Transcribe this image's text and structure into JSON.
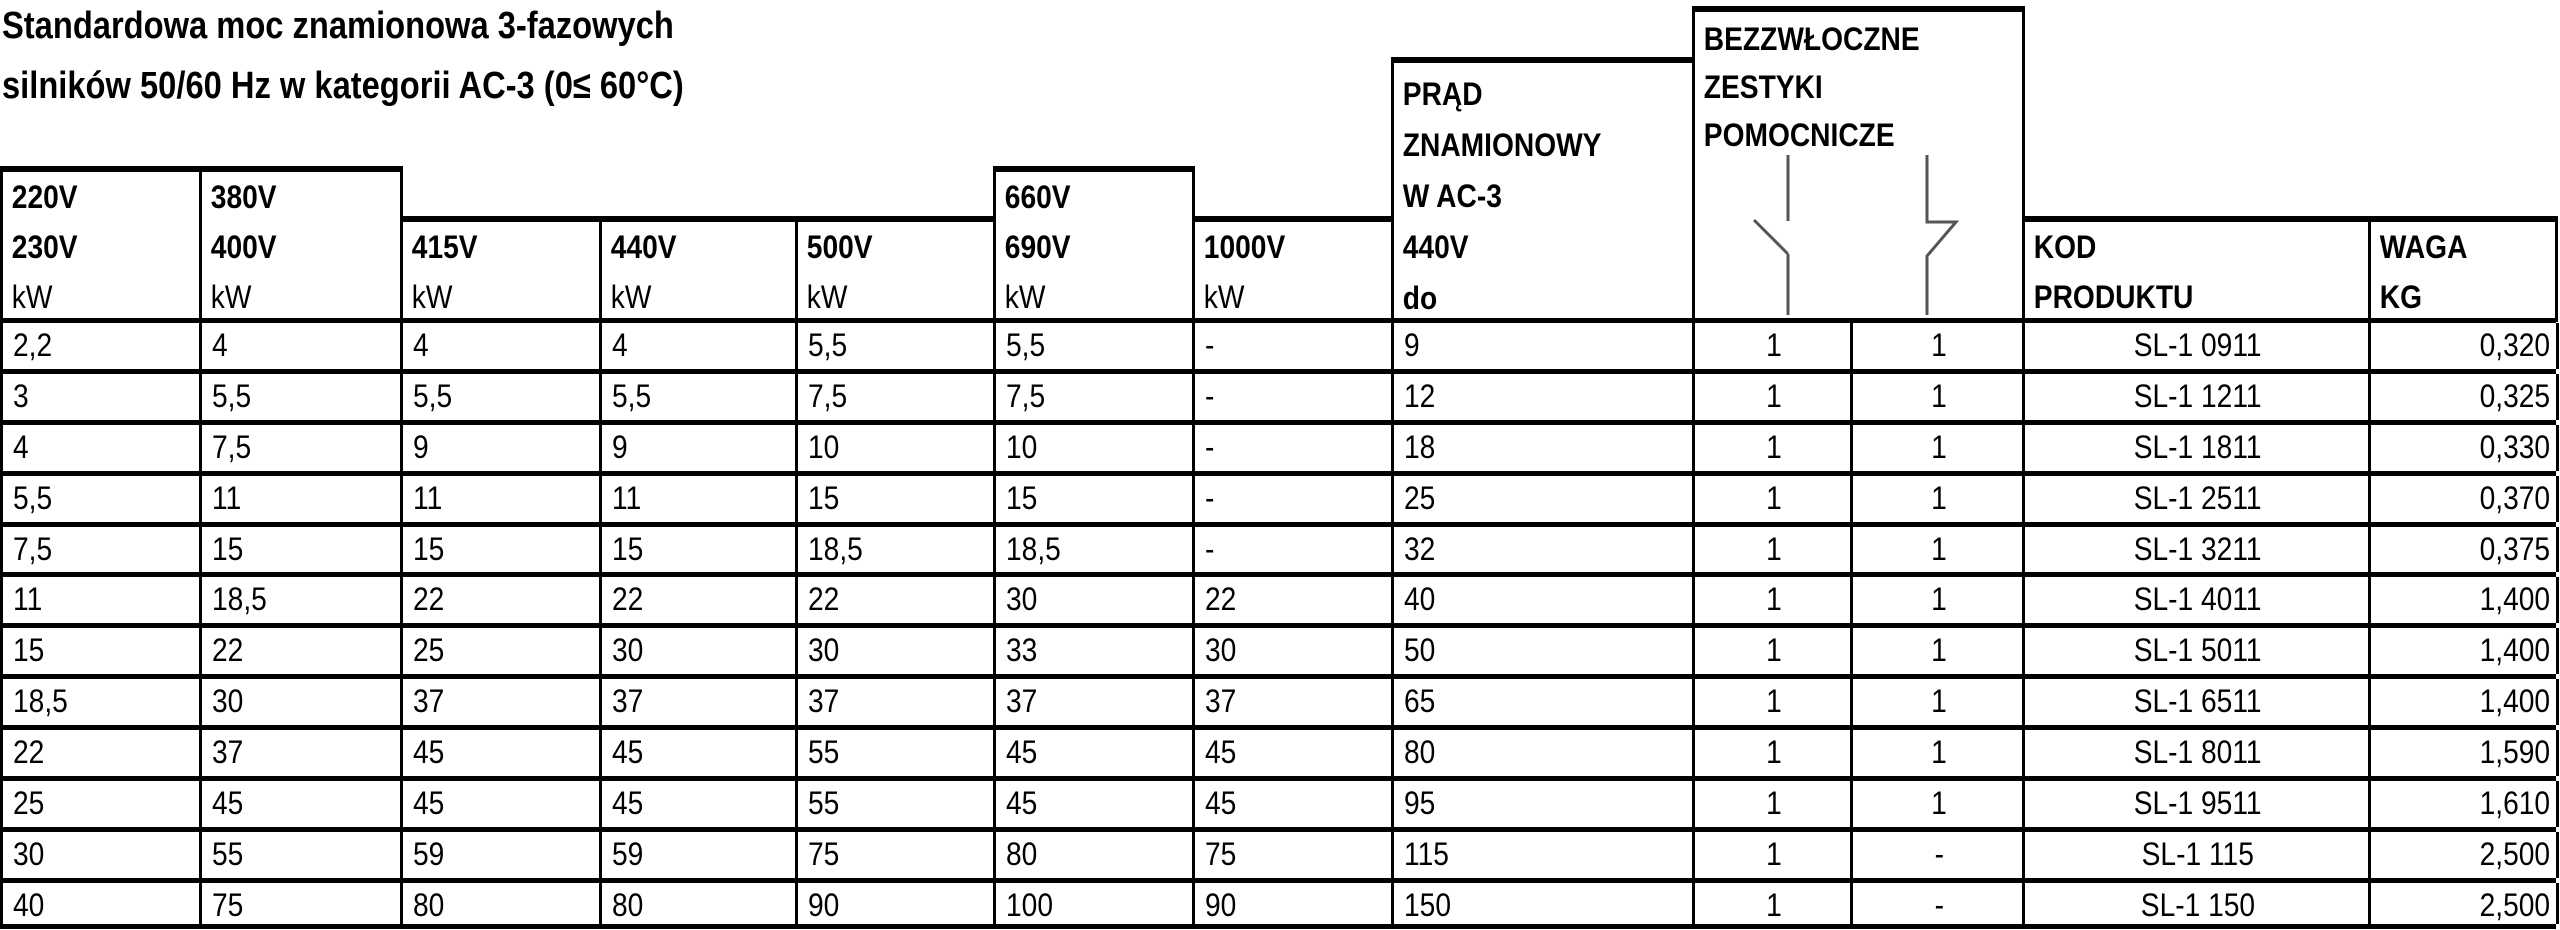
{
  "title": {
    "line1": "Standardowa moc znamionowa 3-fazowych",
    "line2": "silników 50/60 Hz w kategorii AC-3 (0≤ 60°C)"
  },
  "headers": {
    "v220": [
      "220V",
      "230V",
      "kW"
    ],
    "v380": [
      "380V",
      "400V",
      "kW"
    ],
    "v415": [
      "415V",
      "kW"
    ],
    "v440": [
      "440V",
      "kW"
    ],
    "v500": [
      "500V",
      "kW"
    ],
    "v660": [
      "660V",
      "690V",
      "kW"
    ],
    "v1000": [
      "1000V",
      "kW"
    ],
    "current": [
      "PRĄD",
      "ZNAMIONOWY",
      "W AC-3",
      "440V",
      "do"
    ],
    "contacts": [
      "BEZZWŁOCZNE",
      "ZESTYKI",
      "POMOCNICZE"
    ],
    "contact_icons": [
      "normally-open-contact-icon",
      "normally-closed-contact-icon"
    ],
    "code": [
      "KOD",
      "PRODUKTU"
    ],
    "weight": [
      "WAGA",
      "KG"
    ]
  },
  "rows": [
    [
      "2,2",
      "4",
      "4",
      "4",
      "5,5",
      "5,5",
      "-",
      "9",
      "1",
      "1",
      "SL-1 0911",
      "0,320"
    ],
    [
      "3",
      "5,5",
      "5,5",
      "5,5",
      "7,5",
      "7,5",
      "-",
      "12",
      "1",
      "1",
      "SL-1 1211",
      "0,325"
    ],
    [
      "4",
      "7,5",
      "9",
      "9",
      "10",
      "10",
      "-",
      "18",
      "1",
      "1",
      "SL-1 1811",
      "0,330"
    ],
    [
      "5,5",
      "11",
      "11",
      "11",
      "15",
      "15",
      "-",
      "25",
      "1",
      "1",
      "SL-1 2511",
      "0,370"
    ],
    [
      "7,5",
      "15",
      "15",
      "15",
      "18,5",
      "18,5",
      "-",
      "32",
      "1",
      "1",
      "SL-1 3211",
      "0,375"
    ],
    [
      "11",
      "18,5",
      "22",
      "22",
      "22",
      "30",
      "22",
      "40",
      "1",
      "1",
      "SL-1 4011",
      "1,400"
    ],
    [
      "15",
      "22",
      "25",
      "30",
      "30",
      "33",
      "30",
      "50",
      "1",
      "1",
      "SL-1 5011",
      "1,400"
    ],
    [
      "18,5",
      "30",
      "37",
      "37",
      "37",
      "37",
      "37",
      "65",
      "1",
      "1",
      "SL-1 6511",
      "1,400"
    ],
    [
      "22",
      "37",
      "45",
      "45",
      "55",
      "45",
      "45",
      "80",
      "1",
      "1",
      "SL-1 8011",
      "1,590"
    ],
    [
      "25",
      "45",
      "45",
      "45",
      "55",
      "45",
      "45",
      "95",
      "1",
      "1",
      "SL-1 9511",
      "1,610"
    ],
    [
      "30",
      "55",
      "59",
      "59",
      "75",
      "80",
      "75",
      "115",
      "1",
      "-",
      "SL-1 115",
      "2,500"
    ],
    [
      "40",
      "75",
      "80",
      "80",
      "90",
      "100",
      "90",
      "150",
      "1",
      "-",
      "SL-1 150",
      "2,500"
    ]
  ]
}
